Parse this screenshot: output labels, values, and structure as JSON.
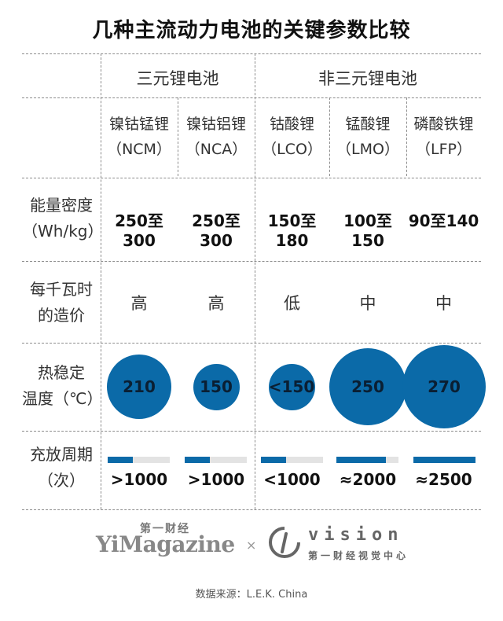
{
  "title": "几种主流动力电池的关键参数比较",
  "groups": {
    "ternary": "三元锂电池",
    "non_ternary": "非三元锂电池"
  },
  "batteries": [
    {
      "name": "镍钴锰锂",
      "code": "（NCM）",
      "energy": "250至300",
      "cost": "高",
      "thermal": "210",
      "thermal_value": 210,
      "cycle": ">1000",
      "cycle_fraction": 0.4
    },
    {
      "name": "镍钴铝锂",
      "code": "（NCA）",
      "energy": "250至300",
      "cost": "高",
      "thermal": "150",
      "thermal_value": 150,
      "cycle": ">1000",
      "cycle_fraction": 0.4
    },
    {
      "name": "钴酸锂",
      "code": "（LCO）",
      "energy": "150至180",
      "cost": "低",
      "thermal": "<150",
      "thermal_value": 150,
      "cycle": "<1000",
      "cycle_fraction": 0.4
    },
    {
      "name": "锰酸锂",
      "code": "（LMO）",
      "energy": "100至150",
      "cost": "中",
      "thermal": "250",
      "thermal_value": 250,
      "cycle": "≈2000",
      "cycle_fraction": 0.8
    },
    {
      "name": "磷酸铁锂",
      "code": "（LFP）",
      "energy": "90至140",
      "cost": "中",
      "thermal": "270",
      "thermal_value": 270,
      "cycle": "≈2500",
      "cycle_fraction": 1.0
    }
  ],
  "row_labels": {
    "energy": [
      "能量密度",
      "（Wh/kg）"
    ],
    "cost": [
      "每千瓦时",
      "的造价"
    ],
    "thermal": [
      "热稳定",
      "温度（℃）"
    ],
    "cycle": [
      "充放周期",
      "（次）"
    ]
  },
  "colors": {
    "accent": "#0b6aa8",
    "bar_track": "#e3e3e3"
  },
  "footer": {
    "yimag_cn": "第一财经",
    "yimag_en": "YiMagazine",
    "times": "×",
    "vision": "vision",
    "vision_cn": "第一财经视觉中心",
    "source": "数据来源：L.E.K. China"
  }
}
